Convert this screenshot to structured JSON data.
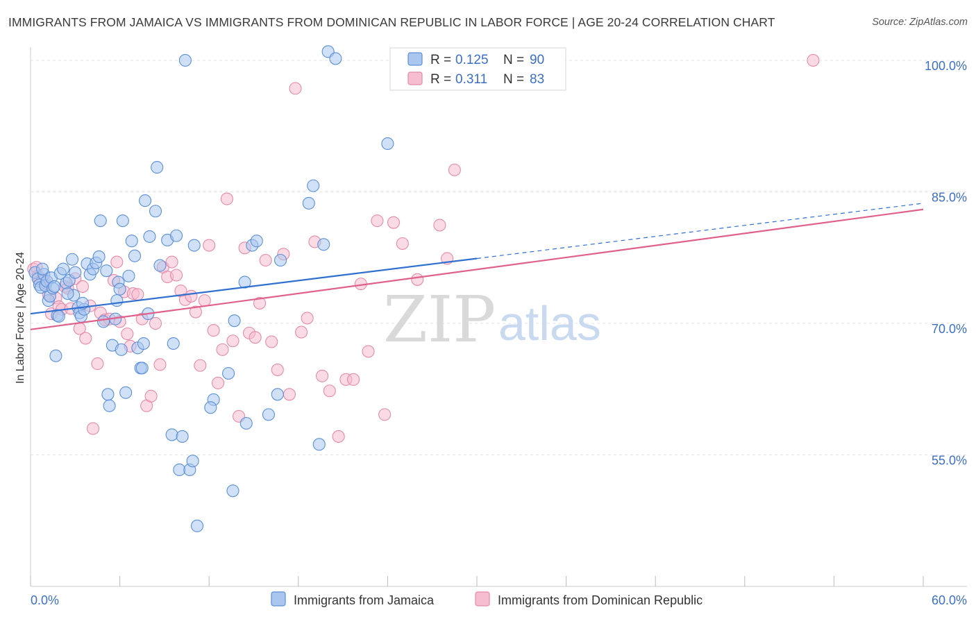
{
  "title": "IMMIGRANTS FROM JAMAICA VS IMMIGRANTS FROM DOMINICAN REPUBLIC IN LABOR FORCE | AGE 20-24 CORRELATION CHART",
  "source": "Source: ZipAtlas.com",
  "watermark": {
    "zip": "ZIP",
    "atlas": "atlas"
  },
  "colors": {
    "jamaica_fill": "#aac6ee",
    "jamaica_stroke": "#5a8fd8",
    "jamaica_line": "#2f6fd0",
    "dominican_fill": "#f6bccf",
    "dominican_stroke": "#e58aa8",
    "dominican_line": "#e0608a",
    "grid": "#e3e3e3",
    "tick_label": "#3b6fc6"
  },
  "legend": {
    "r_label": "R =",
    "n_label": "N =",
    "entries": [
      {
        "series": "jamaica",
        "r": "0.125",
        "n": "90"
      },
      {
        "series": "dominican",
        "r": "0.311",
        "n": "83"
      }
    ]
  },
  "chart_data": {
    "type": "scatter",
    "title": "IMMIGRANTS FROM JAMAICA VS IMMIGRANTS FROM DOMINICAN REPUBLIC IN LABOR FORCE | AGE 20-24 CORRELATION CHART",
    "xlabel": "",
    "ylabel": "In Labor Force | Age 20-24",
    "xlim": [
      0,
      60
    ],
    "ylim": [
      40,
      101.5
    ],
    "x_tick_labels": [
      "0.0%",
      "60.0%"
    ],
    "x_tick_values": [
      0,
      60
    ],
    "y_tick_labels": [
      "55.0%",
      "70.0%",
      "85.0%",
      "100.0%"
    ],
    "y_tick_values": [
      55,
      70,
      85,
      100
    ],
    "grid": "horizontal dashed",
    "legend_placement": "top-center",
    "series": [
      {
        "name": "Immigrants from Jamaica",
        "key": "jamaica",
        "trend": {
          "x0": 0,
          "y0": 71.1,
          "x1": 30,
          "y1": 77.4,
          "dashed_to_x": 60,
          "dashed_to_y": 83.7
        },
        "points": [
          [
            0.3,
            75.8
          ],
          [
            0.5,
            75.1
          ],
          [
            0.6,
            74.4
          ],
          [
            0.7,
            74.1
          ],
          [
            0.9,
            75.6
          ],
          [
            1.0,
            74.3
          ],
          [
            1.1,
            74.8
          ],
          [
            1.2,
            72.6
          ],
          [
            1.3,
            73.1
          ],
          [
            1.4,
            75.2
          ],
          [
            1.5,
            74.0
          ],
          [
            1.6,
            74.2
          ],
          [
            1.7,
            66.3
          ],
          [
            1.8,
            70.9
          ],
          [
            2.0,
            75.7
          ],
          [
            2.2,
            76.2
          ],
          [
            2.4,
            74.6
          ],
          [
            2.6,
            74.9
          ],
          [
            2.8,
            77.3
          ],
          [
            2.9,
            73.2
          ],
          [
            3.0,
            75.8
          ],
          [
            3.2,
            71.8
          ],
          [
            3.3,
            71.2
          ],
          [
            3.4,
            70.8
          ],
          [
            3.6,
            71.6
          ],
          [
            3.8,
            76.8
          ],
          [
            4.0,
            75.6
          ],
          [
            4.2,
            76.2
          ],
          [
            4.4,
            76.9
          ],
          [
            4.6,
            77.6
          ],
          [
            4.7,
            81.7
          ],
          [
            4.9,
            70.2
          ],
          [
            5.1,
            76.0
          ],
          [
            5.2,
            61.9
          ],
          [
            5.3,
            60.6
          ],
          [
            5.5,
            67.5
          ],
          [
            5.7,
            70.5
          ],
          [
            5.9,
            74.7
          ],
          [
            6.0,
            73.9
          ],
          [
            6.1,
            67.0
          ],
          [
            6.2,
            81.7
          ],
          [
            6.4,
            62.1
          ],
          [
            6.6,
            75.4
          ],
          [
            6.8,
            79.4
          ],
          [
            7.0,
            77.7
          ],
          [
            7.2,
            67.2
          ],
          [
            7.4,
            64.9
          ],
          [
            7.5,
            64.9
          ],
          [
            7.6,
            67.7
          ],
          [
            7.7,
            84.0
          ],
          [
            7.9,
            71.1
          ],
          [
            8.0,
            79.9
          ],
          [
            8.4,
            82.8
          ],
          [
            8.5,
            87.8
          ],
          [
            8.7,
            76.6
          ],
          [
            9.2,
            79.5
          ],
          [
            9.5,
            57.3
          ],
          [
            9.6,
            67.7
          ],
          [
            9.8,
            80.0
          ],
          [
            10.0,
            53.3
          ],
          [
            10.2,
            57.1
          ],
          [
            10.4,
            100.0
          ],
          [
            10.7,
            53.3
          ],
          [
            10.9,
            54.3
          ],
          [
            11.0,
            78.9
          ],
          [
            11.2,
            46.9
          ],
          [
            12.3,
            61.3
          ],
          [
            12.1,
            60.4
          ],
          [
            13.3,
            64.3
          ],
          [
            13.6,
            50.9
          ],
          [
            13.7,
            70.3
          ],
          [
            14.4,
            74.7
          ],
          [
            14.5,
            58.6
          ],
          [
            14.9,
            78.9
          ],
          [
            15.2,
            79.4
          ],
          [
            16.0,
            59.6
          ],
          [
            16.6,
            61.9
          ],
          [
            16.8,
            77.2
          ],
          [
            18.7,
            83.7
          ],
          [
            19.0,
            85.7
          ],
          [
            19.4,
            56.2
          ],
          [
            19.7,
            79.0
          ],
          [
            20.0,
            101.0
          ],
          [
            20.5,
            100.2
          ],
          [
            24.0,
            90.5
          ],
          [
            3.5,
            72.3
          ],
          [
            5.8,
            72.6
          ],
          [
            1.9,
            70.8
          ],
          [
            2.5,
            73.4
          ],
          [
            0.8,
            76.2
          ]
        ]
      },
      {
        "name": "Immigrants from Dominican Republic",
        "key": "dominican",
        "trend": {
          "x0": 0,
          "y0": 69.3,
          "x1": 60,
          "y1": 83.0
        },
        "points": [
          [
            0.2,
            76.2
          ],
          [
            0.4,
            76.4
          ],
          [
            0.5,
            75.4
          ],
          [
            0.6,
            74.8
          ],
          [
            0.8,
            75.0
          ],
          [
            1.0,
            74.6
          ],
          [
            1.2,
            73.3
          ],
          [
            1.4,
            71.1
          ],
          [
            1.7,
            72.9
          ],
          [
            1.9,
            71.9
          ],
          [
            2.1,
            71.6
          ],
          [
            2.3,
            74.2
          ],
          [
            2.5,
            74.0
          ],
          [
            2.7,
            71.7
          ],
          [
            3.0,
            75.1
          ],
          [
            3.3,
            69.4
          ],
          [
            3.5,
            74.2
          ],
          [
            3.7,
            68.3
          ],
          [
            4.0,
            72.0
          ],
          [
            4.2,
            58.0
          ],
          [
            4.5,
            65.4
          ],
          [
            4.7,
            71.2
          ],
          [
            5.0,
            70.4
          ],
          [
            5.3,
            70.5
          ],
          [
            5.6,
            74.9
          ],
          [
            5.8,
            77.0
          ],
          [
            6.0,
            70.2
          ],
          [
            6.3,
            73.6
          ],
          [
            6.5,
            68.8
          ],
          [
            6.7,
            67.4
          ],
          [
            6.9,
            73.4
          ],
          [
            7.2,
            73.3
          ],
          [
            7.5,
            70.5
          ],
          [
            7.8,
            60.6
          ],
          [
            8.1,
            61.7
          ],
          [
            8.4,
            70.0
          ],
          [
            8.7,
            65.3
          ],
          [
            8.9,
            76.4
          ],
          [
            9.2,
            75.3
          ],
          [
            9.5,
            77.0
          ],
          [
            9.8,
            75.5
          ],
          [
            10.1,
            73.7
          ],
          [
            10.4,
            72.7
          ],
          [
            10.8,
            73.1
          ],
          [
            11.1,
            71.3
          ],
          [
            11.4,
            65.2
          ],
          [
            11.7,
            72.6
          ],
          [
            12.0,
            78.9
          ],
          [
            12.3,
            69.2
          ],
          [
            12.6,
            63.2
          ],
          [
            12.9,
            67.0
          ],
          [
            13.2,
            84.2
          ],
          [
            13.6,
            68.0
          ],
          [
            14.0,
            59.4
          ],
          [
            14.4,
            78.6
          ],
          [
            14.7,
            68.9
          ],
          [
            15.1,
            68.4
          ],
          [
            15.4,
            72.3
          ],
          [
            15.8,
            77.2
          ],
          [
            16.2,
            67.9
          ],
          [
            16.6,
            64.7
          ],
          [
            17.0,
            77.9
          ],
          [
            17.4,
            61.9
          ],
          [
            17.8,
            96.8
          ],
          [
            18.2,
            69.0
          ],
          [
            18.6,
            70.6
          ],
          [
            19.1,
            79.3
          ],
          [
            19.6,
            64.0
          ],
          [
            20.1,
            62.3
          ],
          [
            20.7,
            57.1
          ],
          [
            21.2,
            63.6
          ],
          [
            21.7,
            63.6
          ],
          [
            22.2,
            74.5
          ],
          [
            22.7,
            66.8
          ],
          [
            23.3,
            81.7
          ],
          [
            23.8,
            59.6
          ],
          [
            24.4,
            81.5
          ],
          [
            25.0,
            79.1
          ],
          [
            26.0,
            75.0
          ],
          [
            27.5,
            81.2
          ],
          [
            28.5,
            87.5
          ],
          [
            28.0,
            77.4
          ],
          [
            52.6,
            100.0
          ]
        ]
      }
    ]
  }
}
